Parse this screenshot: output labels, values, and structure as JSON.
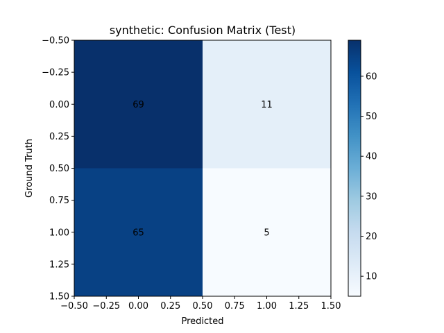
{
  "chart_data": {
    "type": "heatmap",
    "title": "synthetic: Confusion Matrix (Test)",
    "xlabel": "Predicted",
    "ylabel": "Ground Truth",
    "xlim": [
      -0.5,
      1.5
    ],
    "ylim": [
      1.5,
      -0.5
    ],
    "x": [
      0,
      1
    ],
    "y": [
      0,
      1
    ],
    "matrix": [
      [
        69,
        11
      ],
      [
        65,
        5
      ]
    ],
    "xticks": [
      "−0.50",
      "−0.25",
      "0.00",
      "0.25",
      "0.50",
      "0.75",
      "1.00",
      "1.25",
      "1.50"
    ],
    "yticks": [
      "−0.50",
      "−0.25",
      "0.00",
      "0.25",
      "0.50",
      "0.75",
      "1.00",
      "1.25",
      "1.50"
    ],
    "colormap": "Blues",
    "colorbar": {
      "range": [
        5,
        69
      ],
      "ticks": [
        "10",
        "20",
        "30",
        "40",
        "50",
        "60"
      ]
    },
    "grid": false
  }
}
